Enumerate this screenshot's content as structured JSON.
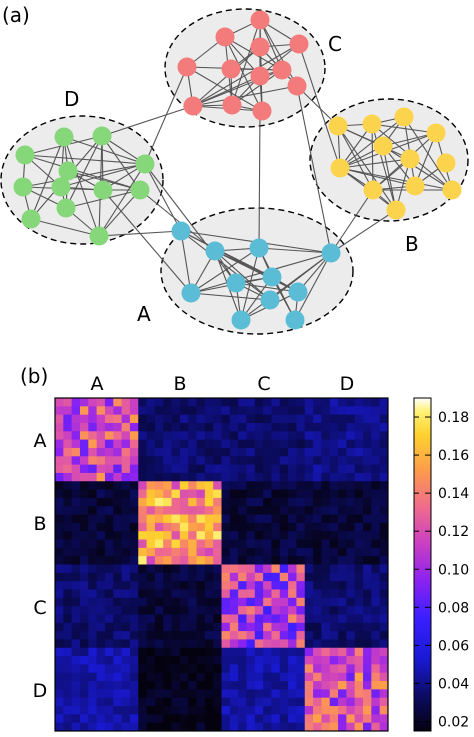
{
  "figure": {
    "panel_a_label": "(a)",
    "panel_b_label": "(b)",
    "communities": [
      {
        "id": "A",
        "label": "A",
        "color": "#5bbcd6"
      },
      {
        "id": "B",
        "label": "B",
        "color": "#fcd34d"
      },
      {
        "id": "C",
        "label": "C",
        "color": "#f47b7b"
      },
      {
        "id": "D",
        "label": "D",
        "color": "#86d67a"
      }
    ],
    "hull_color": "#ececec",
    "edge_color": "#555555"
  },
  "chart_data": {
    "type": "heatmap",
    "x_tick_labels": [
      "A",
      "B",
      "C",
      "D"
    ],
    "y_tick_labels": [
      "A",
      "B",
      "C",
      "D"
    ],
    "block_sizes": [
      10,
      10,
      10,
      10
    ],
    "block_means": [
      [
        0.12,
        0.035,
        0.035,
        0.04
      ],
      [
        0.025,
        0.15,
        0.025,
        0.025
      ],
      [
        0.035,
        0.025,
        0.11,
        0.035
      ],
      [
        0.045,
        0.018,
        0.045,
        0.12
      ]
    ],
    "colorbar": {
      "min": 0.015,
      "max": 0.19,
      "tick_labels": [
        "0.02",
        "0.04",
        "0.06",
        "0.08",
        "0.10",
        "0.12",
        "0.14",
        "0.16",
        "0.18"
      ],
      "colormap": "plasma-like"
    }
  }
}
